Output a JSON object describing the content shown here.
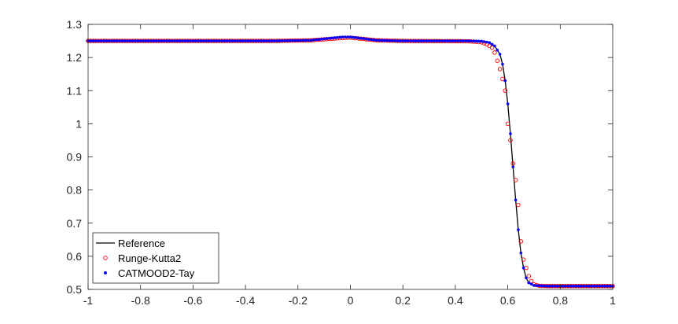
{
  "chart_data": {
    "type": "line",
    "title": "",
    "xlabel": "",
    "ylabel": "",
    "xlim": [
      -1,
      1
    ],
    "ylim": [
      0.5,
      1.3
    ],
    "xticks": [
      "-1",
      "-0.8",
      "-0.6",
      "-0.4",
      "-0.2",
      "0",
      "0.2",
      "0.4",
      "0.6",
      "0.8",
      "1"
    ],
    "yticks": [
      "0.5",
      "0.6",
      "0.7",
      "0.8",
      "0.9",
      "1",
      "1.1",
      "1.2",
      "1.3"
    ],
    "grid": false,
    "legend_position": "bottom-left",
    "series": [
      {
        "name": "Reference",
        "style": "solid-line",
        "color": "#000000",
        "points": [
          [
            -1.0,
            1.25
          ],
          [
            -0.3,
            1.25
          ],
          [
            -0.15,
            1.252
          ],
          [
            -0.08,
            1.258
          ],
          [
            -0.03,
            1.262
          ],
          [
            0.0,
            1.262
          ],
          [
            0.05,
            1.257
          ],
          [
            0.1,
            1.252
          ],
          [
            0.2,
            1.25
          ],
          [
            0.45,
            1.25
          ],
          [
            0.5,
            1.249
          ],
          [
            0.53,
            1.245
          ],
          [
            0.55,
            1.235
          ],
          [
            0.57,
            1.21
          ],
          [
            0.58,
            1.18
          ],
          [
            0.59,
            1.13
          ],
          [
            0.6,
            1.06
          ],
          [
            0.61,
            0.97
          ],
          [
            0.62,
            0.87
          ],
          [
            0.63,
            0.77
          ],
          [
            0.64,
            0.68
          ],
          [
            0.65,
            0.61
          ],
          [
            0.66,
            0.565
          ],
          [
            0.67,
            0.535
          ],
          [
            0.68,
            0.52
          ],
          [
            0.7,
            0.512
          ],
          [
            0.75,
            0.51
          ],
          [
            1.0,
            0.51
          ]
        ]
      },
      {
        "name": "Runge-Kutta2",
        "style": "open-circle",
        "color": "#ff0000",
        "points": [
          [
            -1.0,
            1.25
          ],
          [
            -0.3,
            1.25
          ],
          [
            -0.15,
            1.252
          ],
          [
            -0.08,
            1.256
          ],
          [
            -0.03,
            1.259
          ],
          [
            0.0,
            1.26
          ],
          [
            0.05,
            1.256
          ],
          [
            0.1,
            1.252
          ],
          [
            0.2,
            1.25
          ],
          [
            0.45,
            1.249
          ],
          [
            0.5,
            1.246
          ],
          [
            0.52,
            1.24
          ],
          [
            0.54,
            1.23
          ],
          [
            0.55,
            1.215
          ],
          [
            0.56,
            1.19
          ],
          [
            0.57,
            1.165
          ],
          [
            0.58,
            1.135
          ],
          [
            0.59,
            1.1
          ],
          [
            0.6,
            1.0
          ],
          [
            0.61,
            0.95
          ],
          [
            0.62,
            0.88
          ],
          [
            0.63,
            0.83
          ],
          [
            0.64,
            0.755
          ],
          [
            0.65,
            0.645
          ],
          [
            0.66,
            0.59
          ],
          [
            0.67,
            0.565
          ],
          [
            0.68,
            0.54
          ],
          [
            0.69,
            0.525
          ],
          [
            0.7,
            0.515
          ],
          [
            0.72,
            0.511
          ],
          [
            0.75,
            0.51
          ],
          [
            1.0,
            0.51
          ]
        ]
      },
      {
        "name": "CATMOOD2-Tay",
        "style": "filled-dot",
        "color": "#0000ff",
        "points": [
          [
            -1.0,
            1.25
          ],
          [
            -0.3,
            1.25
          ],
          [
            -0.15,
            1.252
          ],
          [
            -0.08,
            1.258
          ],
          [
            -0.03,
            1.262
          ],
          [
            0.0,
            1.262
          ],
          [
            0.05,
            1.257
          ],
          [
            0.1,
            1.252
          ],
          [
            0.2,
            1.25
          ],
          [
            0.45,
            1.25
          ],
          [
            0.5,
            1.249
          ],
          [
            0.53,
            1.245
          ],
          [
            0.55,
            1.235
          ],
          [
            0.57,
            1.21
          ],
          [
            0.58,
            1.18
          ],
          [
            0.59,
            1.13
          ],
          [
            0.6,
            1.06
          ],
          [
            0.61,
            0.97
          ],
          [
            0.62,
            0.87
          ],
          [
            0.63,
            0.77
          ],
          [
            0.64,
            0.68
          ],
          [
            0.65,
            0.61
          ],
          [
            0.66,
            0.565
          ],
          [
            0.67,
            0.535
          ],
          [
            0.68,
            0.52
          ],
          [
            0.7,
            0.512
          ],
          [
            0.75,
            0.51
          ],
          [
            1.0,
            0.51
          ]
        ]
      }
    ]
  }
}
